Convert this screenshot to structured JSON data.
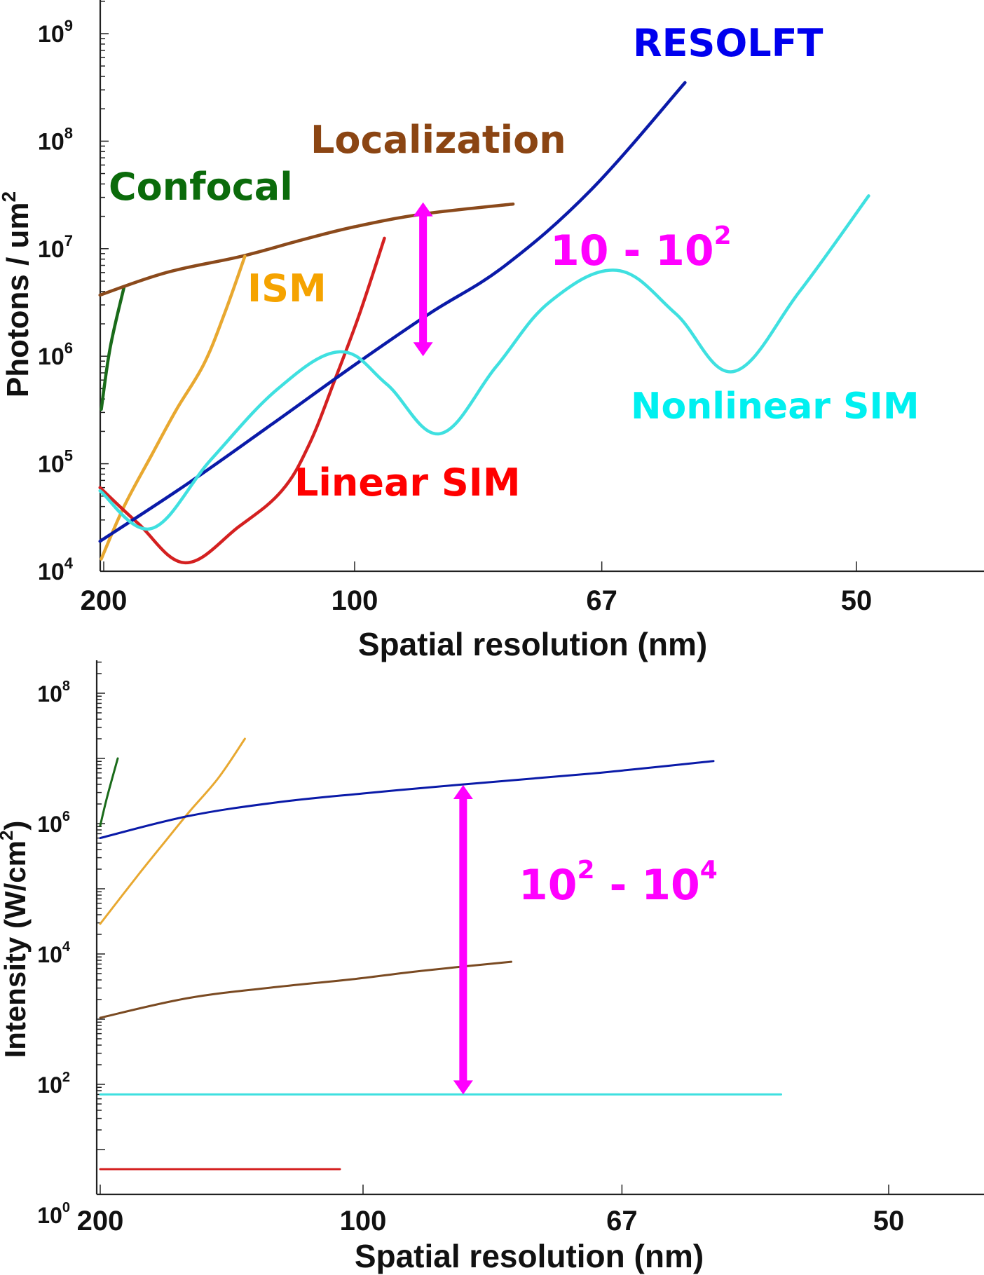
{
  "chart_data": [
    {
      "type": "line",
      "id": "photons",
      "title": "",
      "xlabel": "Spatial resolution (nm)",
      "ylabel": "Photons / um",
      "ylabel_superscript": "2",
      "xscale": "reciprocal (linear in 1/resolution)",
      "yscale": "log",
      "xlim": [
        200,
        40
      ],
      "ylim": [
        10000,
        1000000000
      ],
      "x_ticks": [
        200,
        100,
        67,
        50
      ],
      "x_tick_labels": [
        "200",
        "100",
        "67",
        "50"
      ],
      "y_ticks": [
        {
          "base": "10",
          "exp": "4",
          "value": 10000
        },
        {
          "base": "10",
          "exp": "5",
          "value": 100000
        },
        {
          "base": "10",
          "exp": "6",
          "value": 1000000
        },
        {
          "base": "10",
          "exp": "7",
          "value": 10000000
        },
        {
          "base": "10",
          "exp": "8",
          "value": 100000000
        },
        {
          "base": "10",
          "exp": "9",
          "value": 1000000000
        }
      ],
      "grid": false,
      "series": [
        {
          "name": "Confocal",
          "color": "#1a6b1a",
          "label_color": "#0b6b0b",
          "points": [
            [
              202,
              320000
            ],
            [
              195,
              1200000
            ],
            [
              185,
              4400000
            ]
          ]
        },
        {
          "name": "Localization",
          "color": "#8b4a1c",
          "label_color": "#8b4513",
          "points": [
            [
              203,
              3700000
            ],
            [
              160,
              6000000
            ],
            [
              129,
              8500000
            ],
            [
              112,
              12000000
            ],
            [
              100,
              16000000
            ],
            [
              88,
              21000000
            ],
            [
              76,
              26000000
            ]
          ]
        },
        {
          "name": "ISM",
          "color": "#e8a830",
          "label_color": "#f5a300",
          "points": [
            [
              202,
              13000
            ],
            [
              185,
              40000
            ],
            [
              168,
              120000
            ],
            [
              155,
              320000
            ],
            [
              143,
              840000
            ],
            [
              135,
              2500000
            ],
            [
              128,
              8500000
            ]
          ]
        },
        {
          "name": "Linear SIM",
          "color": "#d42020",
          "label_color": "#ff0000",
          "points": [
            [
              203,
              60000
            ],
            [
              176,
              28000
            ],
            [
              151,
              12000
            ],
            [
              130,
              26000
            ],
            [
              117,
              56000
            ],
            [
              110,
              150000
            ],
            [
              104,
              620000
            ],
            [
              99,
              2500000
            ],
            [
              94.4,
              12500000
            ]
          ]
        },
        {
          "name": "RESOLFT",
          "color": "#0a1aa8",
          "label_color": "#0000ee",
          "points": [
            [
              203,
              19000
            ],
            [
              150,
              65000
            ],
            [
              120,
              230000
            ],
            [
              100,
              830000
            ],
            [
              87,
              2500000
            ],
            [
              77,
              6900000
            ],
            [
              68,
              35000000
            ],
            [
              60.3,
              350000000
            ]
          ]
        },
        {
          "name": "Nonlinear SIM",
          "color": "#3fe0e0",
          "label_color": "#00ffff",
          "points": [
            [
              203,
              56000
            ],
            [
              168,
              25000
            ],
            [
              140,
              110000
            ],
            [
              118,
              500000
            ],
            [
              103,
              1100000
            ],
            [
              94,
              550000
            ],
            [
              85.5,
              190000
            ],
            [
              78,
              800000
            ],
            [
              72,
              3200000
            ],
            [
              65.7,
              6300000
            ],
            [
              61,
              2500000
            ],
            [
              57,
              720000
            ],
            [
              53,
              4000000
            ],
            [
              49.4,
              31000000
            ]
          ]
        }
      ],
      "annotations": [
        {
          "text": "Confocal",
          "color": "#0b6b0b"
        },
        {
          "text": "Localization",
          "color": "#8b4513"
        },
        {
          "text": "ISM",
          "color": "#f5a300"
        },
        {
          "text": "Linear SIM",
          "color": "#ff0000"
        },
        {
          "text": "RESOLFT",
          "color": "#0000ee"
        },
        {
          "text": "Nonlinear SIM",
          "color": "#00f0f0"
        },
        {
          "text_base": "10 - 10",
          "text_sup": "2",
          "color": "#ff00ff",
          "arrow": {
            "at_resolution": 88,
            "from": 27000000,
            "to": 1000000,
            "double_headed": true
          }
        }
      ]
    },
    {
      "type": "line",
      "id": "intensity",
      "title": "",
      "xlabel": "Spatial resolution (nm)",
      "ylabel": "Intensity (W/cm",
      "ylabel_superscript": "2",
      "ylabel_suffix": ")",
      "xscale": "reciprocal (linear in 1/resolution)",
      "yscale": "log",
      "xlim": [
        200,
        42
      ],
      "ylim": [
        1,
        1000000000
      ],
      "x_ticks": [
        200,
        100,
        67,
        50
      ],
      "x_tick_labels": [
        "200",
        "100",
        "67",
        "50"
      ],
      "y_ticks": [
        {
          "base": "10",
          "exp": "0",
          "value": 1
        },
        {
          "base": "10",
          "exp": "2",
          "value": 100
        },
        {
          "base": "10",
          "exp": "4",
          "value": 10000
        },
        {
          "base": "10",
          "exp": "6",
          "value": 1000000
        },
        {
          "base": "10",
          "exp": "8",
          "value": 100000000
        }
      ],
      "grid": false,
      "series": [
        {
          "name": "Confocal",
          "color": "#1a6b1a",
          "points": [
            [
              200,
              930000
            ],
            [
              195,
              2500000
            ],
            [
              187.5,
              10000000
            ]
          ]
        },
        {
          "name": "ISM",
          "color": "#e8a830",
          "points": [
            [
              200,
              29000
            ],
            [
              175,
              160000
            ],
            [
              160,
              550000
            ],
            [
              149.5,
              1500000
            ],
            [
              138,
              5000000
            ],
            [
              129,
              20000000
            ]
          ]
        },
        {
          "name": "RESOLFT",
          "color": "#0a1aa8",
          "points": [
            [
              200,
              600000
            ],
            [
              150,
              1300000
            ],
            [
              120,
              2100000
            ],
            [
              100,
              2900000
            ],
            [
              85,
              3900000
            ],
            [
              70,
              5800000
            ],
            [
              60,
              9100000
            ]
          ]
        },
        {
          "name": "Localization",
          "color": "#7a4a22",
          "points": [
            [
              200,
              1050
            ],
            [
              150,
              2100
            ],
            [
              120,
              3100
            ],
            [
              102,
              4100
            ],
            [
              90,
              5500
            ],
            [
              78,
              7600
            ]
          ]
        },
        {
          "name": "Nonlinear SIM",
          "color": "#3fe0e0",
          "points": [
            [
              200,
              70
            ],
            [
              55.7,
              70
            ]
          ]
        },
        {
          "name": "Linear SIM",
          "color": "#d42020",
          "points": [
            [
              200,
              5
            ],
            [
              104.6,
              5
            ]
          ]
        }
      ],
      "annotations": [
        {
          "text_base1": "10",
          "text_sup1": "2",
          "text_mid": " - ",
          "text_base2": "10",
          "text_sup2": "4",
          "color": "#ff00ff",
          "arrow": {
            "at_resolution": 84,
            "from": 3900000,
            "to": 70,
            "double_headed": true
          }
        }
      ]
    }
  ]
}
